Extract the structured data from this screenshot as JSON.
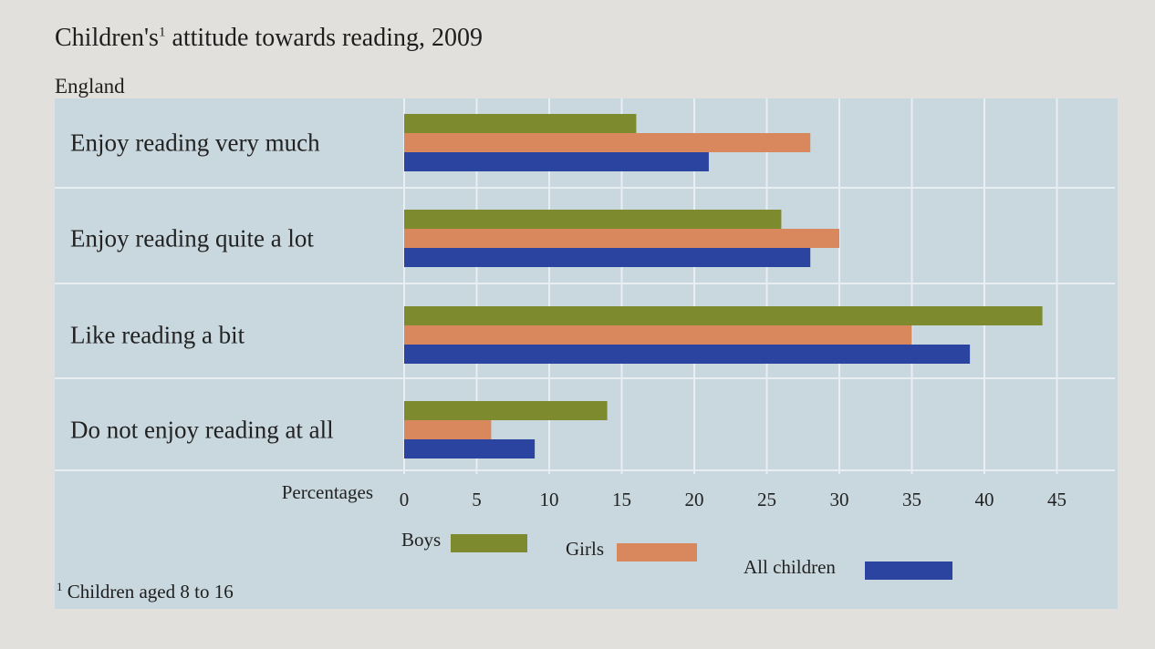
{
  "title": {
    "main": "Children's",
    "footnote_marker": "1",
    "rest": " attitude towards reading, 2009"
  },
  "subtitle": "England",
  "footnote": {
    "marker": "1",
    "text": "Children aged 8 to 16"
  },
  "colors": {
    "boys": "#7d8a2e",
    "girls": "#d9875c",
    "all": "#2b44a0",
    "panel": "#c9d7de",
    "grid": "#e8eef1"
  },
  "chart_data": {
    "type": "bar",
    "orientation": "horizontal",
    "categories": [
      "Enjoy reading very much",
      "Enjoy reading quite a lot",
      "Like reading a bit",
      "Do not enjoy reading at all"
    ],
    "series": [
      {
        "name": "Boys",
        "values": [
          16,
          26,
          44,
          14
        ]
      },
      {
        "name": "Girls",
        "values": [
          28,
          30,
          35,
          6
        ]
      },
      {
        "name": "All children",
        "values": [
          21,
          28,
          39,
          9
        ]
      }
    ],
    "xlabel": "Percentages",
    "xticks": [
      0,
      5,
      10,
      15,
      20,
      25,
      30,
      35,
      40,
      45
    ],
    "xlim": [
      0,
      50
    ],
    "grid": true,
    "legend": "bottom"
  }
}
